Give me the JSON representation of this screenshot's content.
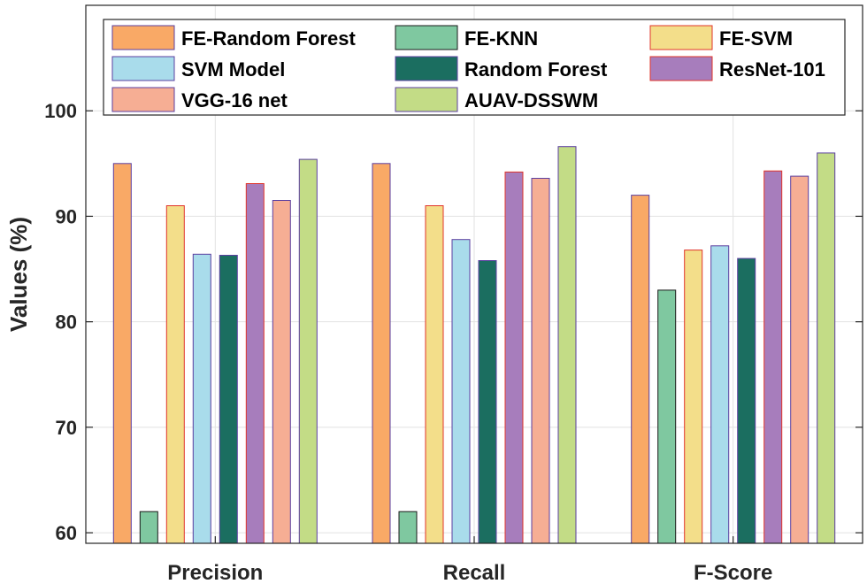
{
  "chart_data": {
    "type": "bar",
    "title": "",
    "xlabel": "",
    "ylabel": "Values (%)",
    "ylim": [
      59,
      110
    ],
    "yticks": [
      60,
      70,
      80,
      90,
      100
    ],
    "grid": true,
    "legend_position": "top",
    "categories": [
      "Precision",
      "Recall",
      "F-Score"
    ],
    "series": [
      {
        "name": "FE-Random Forest",
        "values": [
          95.0,
          95.0,
          92.0
        ],
        "color": "#F9A966",
        "edge": "#5B3FA0"
      },
      {
        "name": "FE-KNN",
        "values": [
          62.0,
          62.0,
          83.0
        ],
        "color": "#7FC8A0",
        "edge": "#1A1A1A"
      },
      {
        "name": "FE-SVM",
        "values": [
          91.0,
          91.0,
          86.8
        ],
        "color": "#F3DE8A",
        "edge": "#E0342A"
      },
      {
        "name": "SVM Model",
        "values": [
          86.4,
          87.8,
          87.2
        ],
        "color": "#A9DCEB",
        "edge": "#5B3FA0"
      },
      {
        "name": "Random Forest",
        "values": [
          86.3,
          85.8,
          86.0
        ],
        "color": "#1B6E60",
        "edge": "#5B3FA0"
      },
      {
        "name": "ResNet-101",
        "values": [
          93.1,
          94.2,
          94.3
        ],
        "color": "#A77DBC",
        "edge": "#E0342A"
      },
      {
        "name": "VGG-16 net",
        "values": [
          91.5,
          93.6,
          93.8
        ],
        "color": "#F6AE94",
        "edge": "#5B3FA0"
      },
      {
        "name": "AUAV-DSSWM",
        "values": [
          95.4,
          96.6,
          96.0
        ],
        "color": "#C3DC86",
        "edge": "#5B3FA0"
      }
    ]
  }
}
